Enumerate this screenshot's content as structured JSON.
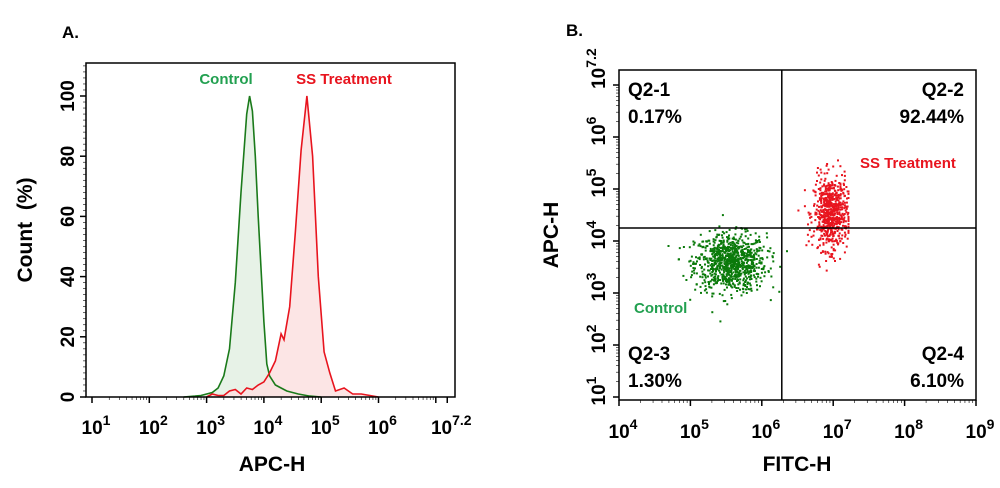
{
  "panels": {
    "a_label": "A.",
    "b_label": "B."
  },
  "chart_data": [
    {
      "type": "area",
      "panel": "A.",
      "xlabel": "APC-H",
      "ylabel": "Count  (%)",
      "xscale": "log",
      "xlim_log10": [
        1,
        7.2
      ],
      "ylim": [
        0,
        110
      ],
      "xtick_labels": [
        {
          "base": "10",
          "exp": "1"
        },
        {
          "base": "10",
          "exp": "2"
        },
        {
          "base": "10",
          "exp": "3"
        },
        {
          "base": "10",
          "exp": "4"
        },
        {
          "base": "10",
          "exp": "5"
        },
        {
          "base": "10",
          "exp": "6"
        },
        {
          "base": "10",
          "exp": "7.2"
        }
      ],
      "ytick_labels": [
        "0",
        "20",
        "40",
        "60",
        "80",
        "100"
      ],
      "grid": false,
      "series": [
        {
          "name": "Control",
          "color": "#1a7a1a",
          "fill": "#e3f0e3",
          "label_color": "#22a050",
          "log10_x": [
            2.6,
            2.8,
            2.9,
            3.0,
            3.1,
            3.2,
            3.3,
            3.4,
            3.5,
            3.6,
            3.7,
            3.75,
            3.8,
            3.85,
            3.9,
            4.0,
            4.05,
            4.1,
            4.2,
            4.3,
            4.4,
            4.6,
            4.8,
            5.0
          ],
          "y": [
            0,
            0.3,
            0.5,
            1,
            1.5,
            3,
            7,
            16,
            38,
            68,
            94,
            100,
            95,
            80,
            60,
            25,
            11,
            7,
            4,
            3,
            2,
            1,
            0.3,
            0
          ]
        },
        {
          "name": "SS Treatment",
          "color": "#e8141e",
          "fill": "#fbe0e0",
          "label_color": "#e8141e",
          "log10_x": [
            3.0,
            3.1,
            3.2,
            3.3,
            3.4,
            3.5,
            3.6,
            3.7,
            3.8,
            3.9,
            4.0,
            4.1,
            4.2,
            4.3,
            4.35,
            4.45,
            4.55,
            4.65,
            4.75,
            4.85,
            4.95,
            5.05,
            5.15,
            5.25,
            5.4,
            5.55,
            5.7,
            5.85,
            6.0
          ],
          "y": [
            0,
            1,
            0.5,
            0.5,
            2,
            2.5,
            1,
            3,
            2.5,
            4,
            5,
            8,
            12,
            21,
            19,
            30,
            55,
            82,
            100,
            80,
            40,
            15,
            8,
            2,
            3,
            1,
            1,
            0.5,
            0
          ]
        }
      ]
    },
    {
      "type": "scatter",
      "panel": "B.",
      "xlabel": "FITC-H",
      "ylabel": "APC-H",
      "xscale": "log",
      "yscale": "log",
      "xlim_log10": [
        4,
        9
      ],
      "ylim_log10": [
        1,
        7.2
      ],
      "xtick_labels": [
        {
          "base": "10",
          "exp": "4"
        },
        {
          "base": "10",
          "exp": "5"
        },
        {
          "base": "10",
          "exp": "6"
        },
        {
          "base": "10",
          "exp": "7"
        },
        {
          "base": "10",
          "exp": "8"
        },
        {
          "base": "10",
          "exp": "9"
        }
      ],
      "ytick_labels": [
        {
          "base": "10",
          "exp": "1"
        },
        {
          "base": "10",
          "exp": "2"
        },
        {
          "base": "10",
          "exp": "3"
        },
        {
          "base": "10",
          "exp": "4"
        },
        {
          "base": "10",
          "exp": "5"
        },
        {
          "base": "10",
          "exp": "6"
        },
        {
          "base": "10",
          "exp": "7.2"
        }
      ],
      "gate_log10": {
        "x": 6.28,
        "y": 4.25
      },
      "quadrants": [
        {
          "name": "Q2-1",
          "percent": "0.17%",
          "position": "top-left"
        },
        {
          "name": "Q2-2",
          "percent": "92.44%",
          "position": "top-right"
        },
        {
          "name": "Q2-3",
          "percent": "1.30%",
          "position": "bottom-left"
        },
        {
          "name": "Q2-4",
          "percent": "6.10%",
          "position": "bottom-right"
        }
      ],
      "series": [
        {
          "name": "Control",
          "color": "#0a7a0a",
          "label_color": "#22a050",
          "center_log10": [
            5.55,
            3.6
          ],
          "spread_log10": [
            0.25,
            0.28
          ],
          "count": 900
        },
        {
          "name": "SS Treatment",
          "color": "#e8141e",
          "label_color": "#e8141e",
          "center_log10": [
            6.95,
            4.55
          ],
          "spread_log10": [
            0.12,
            0.35
          ],
          "count": 650
        }
      ]
    }
  ]
}
